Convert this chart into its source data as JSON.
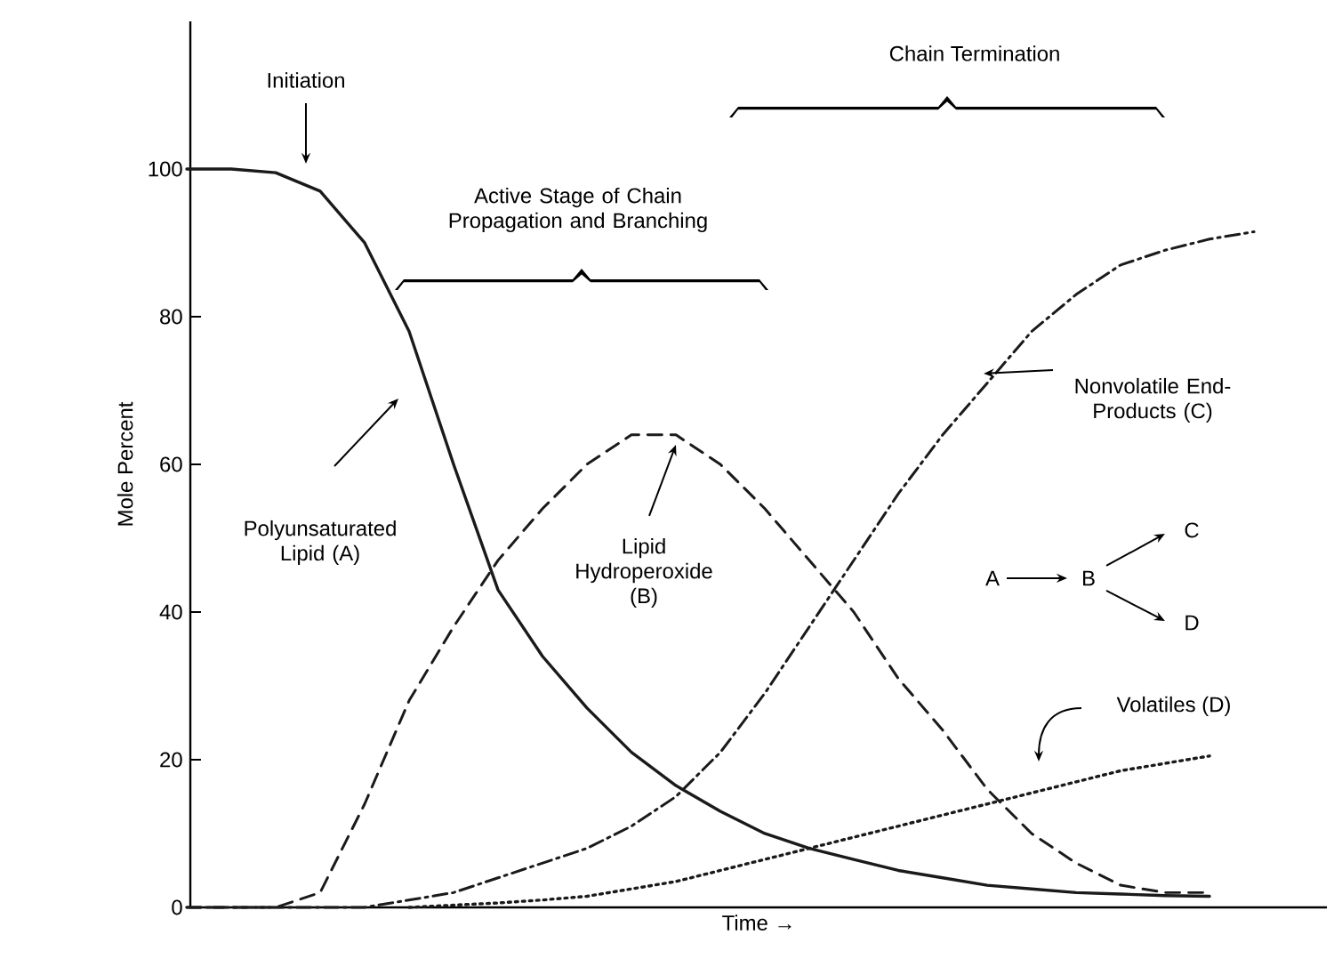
{
  "chart_data": {
    "type": "line",
    "xlabel": "Time →",
    "ylabel": "Mole Percent",
    "categories": [
      null,
      null,
      null,
      null,
      null,
      null,
      null,
      null,
      null,
      null,
      null,
      null,
      null,
      null,
      null,
      null,
      null,
      null,
      null,
      null,
      null,
      null,
      null,
      null,
      null
    ],
    "series": [
      {
        "color": "#1a1a1a",
        "line_style": "solid",
        "values": [
          100,
          100,
          99.5,
          97,
          90,
          78,
          60,
          43,
          34,
          27,
          21,
          16.5,
          13,
          10,
          8,
          6.5,
          5,
          4,
          3,
          2.5,
          2,
          1.8,
          1.6,
          1.5,
          null
        ]
      },
      {
        "color": "#1a1a1a",
        "line_style": "dashed",
        "values": [
          0,
          0,
          0,
          2,
          14,
          28,
          38,
          47,
          54,
          60,
          64,
          64,
          60,
          54,
          47,
          40,
          31,
          24,
          16,
          10,
          6,
          3,
          2,
          2,
          null
        ]
      },
      {
        "color": "#1a1a1a",
        "line_style": "dashdot",
        "values": [
          0,
          0,
          0,
          0,
          0,
          1,
          2,
          4,
          6,
          8,
          11,
          15,
          21,
          29,
          38,
          47,
          56,
          64,
          71,
          78,
          83,
          87,
          89,
          90.5,
          91.5
        ]
      },
      {
        "color": "#1a1a1a",
        "line_style": "dotted",
        "values": [
          null,
          null,
          null,
          null,
          null,
          0,
          0.3,
          0.6,
          1,
          1.5,
          2.5,
          3.5,
          5,
          6.5,
          8,
          9.5,
          11,
          12.5,
          14,
          15.5,
          17,
          18.5,
          19.5,
          20.5,
          null
        ]
      }
    ],
    "ylim": [
      0,
      120
    ],
    "yticks": [
      0,
      20,
      40,
      60,
      80,
      100
    ],
    "grid": false,
    "annotations": [
      "Initiation",
      "Active Stage of Chain Propagation and Branching",
      "Chain Termination",
      "Polyunsaturated Lipid (A)",
      "Lipid Hydroperoxide (B)",
      "Nonvolatile End-Products (C)",
      "Volatiles (D)",
      "A",
      "B",
      "C",
      "D"
    ]
  }
}
